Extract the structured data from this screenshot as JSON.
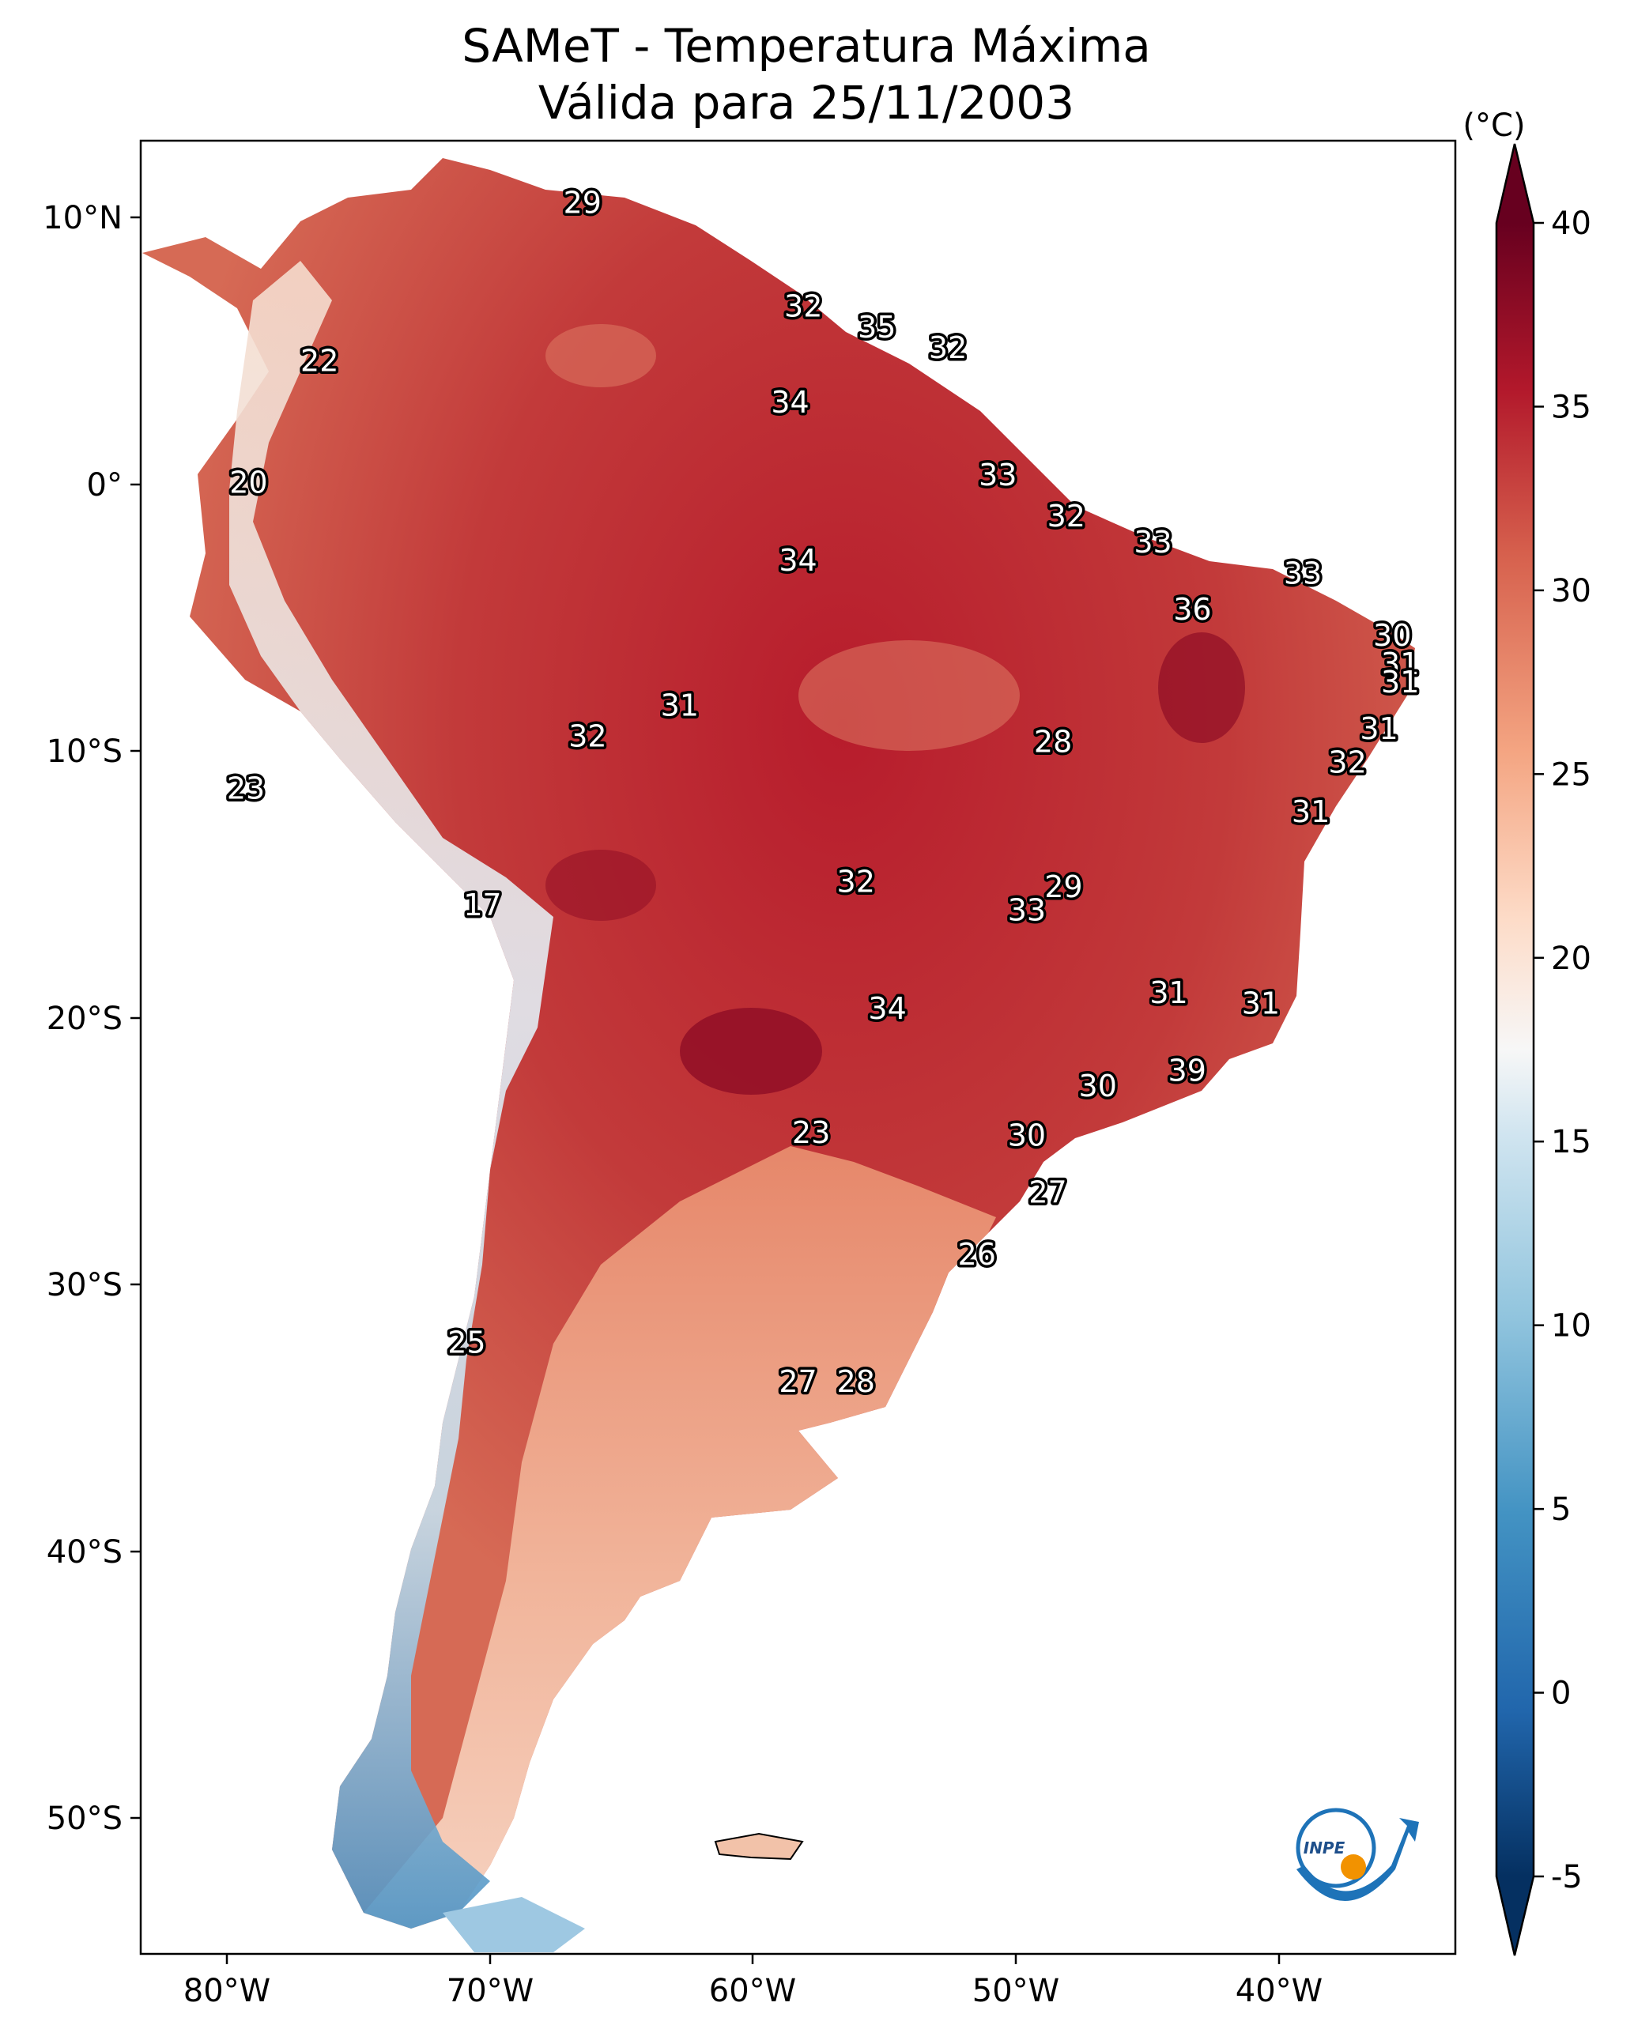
{
  "title": {
    "line1": "SAMeT - Temperatura Máxima",
    "line2": "Válida para 25/11/2003"
  },
  "lon_labels": [
    "80°W",
    "70°W",
    "60°W",
    "50°W",
    "40°W"
  ],
  "lat_labels": [
    "10°N",
    "0°",
    "10°S",
    "20°S",
    "30°S",
    "40°S",
    "50°S"
  ],
  "colorbar": {
    "unit": "(°C)",
    "ticks": [
      "40",
      "35",
      "30",
      "25",
      "20",
      "15",
      "10",
      "5",
      "0",
      "-5"
    ],
    "min": -5,
    "max": 40,
    "extend": "both",
    "colormap": "RdBu_r"
  },
  "map_extent": {
    "lon": [
      -83,
      -33
    ],
    "lat": [
      -57,
      13
    ]
  },
  "temperature_labels": [
    {
      "lon": -66.2,
      "lat": 10.6,
      "value": "29"
    },
    {
      "lon": -76.2,
      "lat": 4.5,
      "value": "22"
    },
    {
      "lon": -57.8,
      "lat": 6.6,
      "value": "32"
    },
    {
      "lon": -55.0,
      "lat": 5.8,
      "value": "35"
    },
    {
      "lon": -52.3,
      "lat": 5.0,
      "value": "32"
    },
    {
      "lon": -58.3,
      "lat": 2.9,
      "value": "34"
    },
    {
      "lon": -78.9,
      "lat": -0.2,
      "value": "20"
    },
    {
      "lon": -50.4,
      "lat": 0.1,
      "value": "33"
    },
    {
      "lon": -47.8,
      "lat": -1.5,
      "value": "32"
    },
    {
      "lon": -44.5,
      "lat": -2.5,
      "value": "33"
    },
    {
      "lon": -38.8,
      "lat": -3.7,
      "value": "33"
    },
    {
      "lon": -58.0,
      "lat": -3.2,
      "value": "34"
    },
    {
      "lon": -43.0,
      "lat": -5.1,
      "value": "36"
    },
    {
      "lon": -35.4,
      "lat": -6.1,
      "value": "30"
    },
    {
      "lon": -35.1,
      "lat": -7.2,
      "value": "31"
    },
    {
      "lon": -35.1,
      "lat": -7.9,
      "value": "31"
    },
    {
      "lon": -62.5,
      "lat": -8.8,
      "value": "31"
    },
    {
      "lon": -35.9,
      "lat": -9.7,
      "value": "31"
    },
    {
      "lon": -66.0,
      "lat": -10.0,
      "value": "32"
    },
    {
      "lon": -48.3,
      "lat": -10.2,
      "value": "28"
    },
    {
      "lon": -37.1,
      "lat": -11.0,
      "value": "32"
    },
    {
      "lon": -79.0,
      "lat": -12.0,
      "value": "23"
    },
    {
      "lon": -38.5,
      "lat": -12.9,
      "value": "31"
    },
    {
      "lon": -55.8,
      "lat": -15.6,
      "value": "32"
    },
    {
      "lon": -47.9,
      "lat": -15.8,
      "value": "29"
    },
    {
      "lon": -49.3,
      "lat": -16.7,
      "value": "33"
    },
    {
      "lon": -70.0,
      "lat": -16.5,
      "value": "17"
    },
    {
      "lon": -43.9,
      "lat": -19.9,
      "value": "31"
    },
    {
      "lon": -40.4,
      "lat": -20.3,
      "value": "31"
    },
    {
      "lon": -54.6,
      "lat": -20.5,
      "value": "34"
    },
    {
      "lon": -43.2,
      "lat": -22.9,
      "value": "39"
    },
    {
      "lon": -46.6,
      "lat": -23.5,
      "value": "30"
    },
    {
      "lon": -57.5,
      "lat": -25.3,
      "value": "23"
    },
    {
      "lon": -49.3,
      "lat": -25.4,
      "value": "30"
    },
    {
      "lon": -48.5,
      "lat": -27.6,
      "value": "27"
    },
    {
      "lon": -51.2,
      "lat": -30.0,
      "value": "26"
    },
    {
      "lon": -70.6,
      "lat": -33.4,
      "value": "25"
    },
    {
      "lon": -58.0,
      "lat": -34.9,
      "value": "27"
    },
    {
      "lon": -55.8,
      "lat": -34.9,
      "value": "28"
    }
  ]
}
